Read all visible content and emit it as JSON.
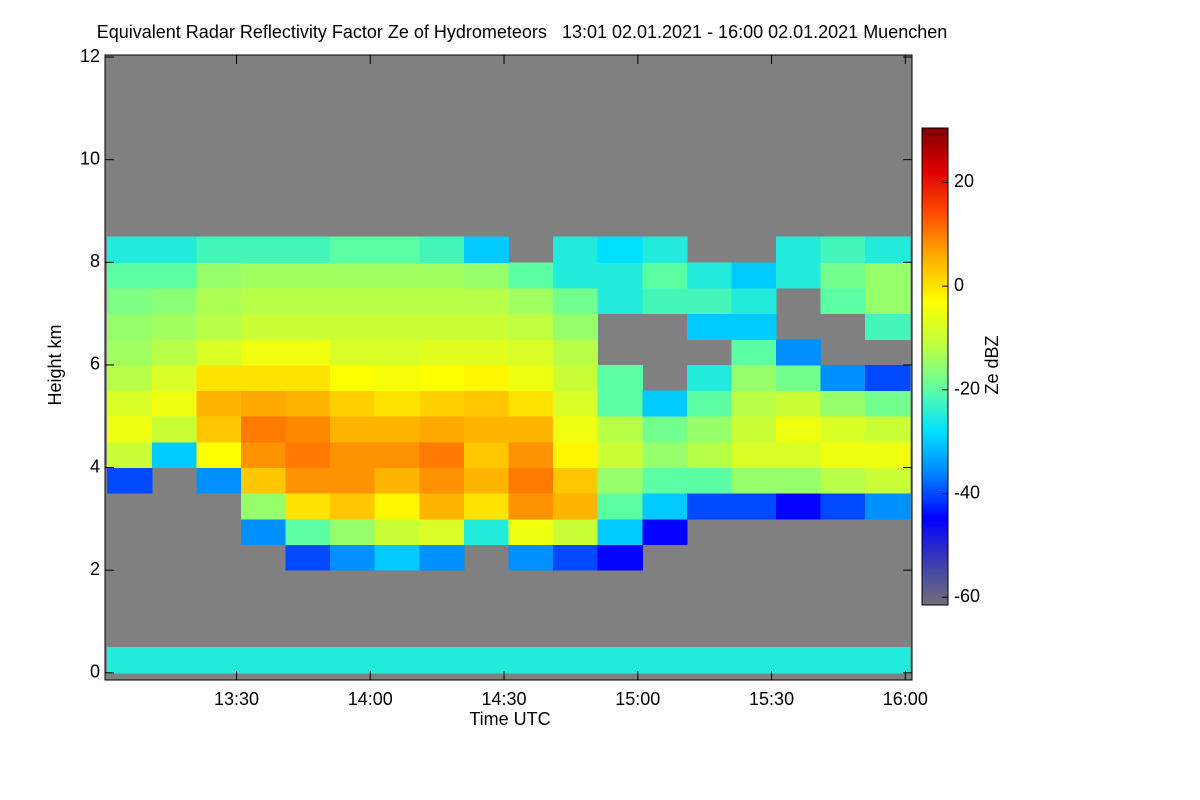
{
  "chart_data": {
    "type": "heatmap",
    "title": "Equivalent Radar Reflectivity Factor Ze of Hydrometeors   13:01 02.01.2021 - 16:00 02.01.2021 Muenchen",
    "x_label": "Time UTC",
    "y_label": "Height km",
    "colorbar_label": "Ze dBZ",
    "x_edges": [
      781,
      791,
      801,
      811,
      821,
      831,
      841,
      851,
      861,
      871,
      881,
      891,
      901,
      911,
      921,
      931,
      941,
      951,
      961
    ],
    "y_edges": [
      0,
      0.5,
      1,
      1.5,
      2,
      2.5,
      3,
      3.5,
      4,
      4.5,
      5,
      5.5,
      6,
      6.5,
      7,
      7.5,
      8,
      8.5,
      9
    ],
    "z": [
      [
        -25,
        null,
        null,
        null,
        null,
        null,
        null,
        -40,
        -10,
        -5,
        -8,
        -12,
        -14,
        -15,
        -17,
        -20,
        -25,
        null
      ],
      [
        -25,
        null,
        null,
        null,
        null,
        null,
        null,
        null,
        -30,
        -10,
        -5,
        -8,
        -12,
        -14,
        -16,
        -20,
        -25,
        null
      ],
      [
        -25,
        null,
        null,
        null,
        null,
        null,
        null,
        -35,
        -3,
        3,
        5,
        0,
        -8,
        -12,
        -13,
        -15,
        -22,
        null
      ],
      [
        -25,
        null,
        null,
        null,
        null,
        -35,
        -15,
        3,
        8,
        10,
        6,
        0,
        -5,
        -10,
        -12,
        -14,
        -22,
        null
      ],
      [
        -25,
        null,
        null,
        null,
        -40,
        -20,
        0,
        8,
        10,
        9,
        5,
        0,
        -5,
        -10,
        -12,
        -14,
        -22,
        null
      ],
      [
        -25,
        null,
        null,
        null,
        -35,
        -15,
        3,
        8,
        8,
        5,
        2,
        -3,
        -8,
        -10,
        -12,
        -14,
        -20,
        null
      ],
      [
        -25,
        null,
        null,
        null,
        -30,
        -10,
        -2,
        5,
        8,
        5,
        0,
        -4,
        -8,
        -10,
        -12,
        -14,
        -20,
        null
      ],
      [
        -25,
        null,
        null,
        null,
        -35,
        -8,
        5,
        8,
        10,
        6,
        2,
        -3,
        -7,
        -10,
        -12,
        -14,
        -22,
        null
      ],
      [
        -25,
        null,
        null,
        null,
        null,
        -25,
        0,
        5,
        3,
        5,
        3,
        -2,
        -7,
        -10,
        -12,
        -15,
        -30,
        null
      ],
      [
        -25,
        null,
        null,
        null,
        -35,
        -5,
        8,
        10,
        8,
        5,
        0,
        -5,
        -8,
        -11,
        -14,
        -20,
        null,
        null
      ],
      [
        -25,
        null,
        null,
        null,
        -40,
        -10,
        5,
        3,
        -2,
        -5,
        -8,
        -10,
        -12,
        -15,
        -18,
        -25,
        -25,
        null
      ],
      [
        -25,
        null,
        null,
        null,
        -45,
        -30,
        -20,
        -15,
        -10,
        -12,
        -20,
        -20,
        null,
        null,
        -25,
        -25,
        -28,
        null
      ],
      [
        -25,
        null,
        null,
        null,
        null,
        -45,
        -30,
        -20,
        -15,
        -18,
        -30,
        null,
        null,
        null,
        -22,
        -20,
        -25,
        null
      ],
      [
        -25,
        null,
        null,
        null,
        null,
        null,
        -40,
        -20,
        -12,
        -15,
        -20,
        -25,
        null,
        -30,
        -22,
        -25,
        null,
        null
      ],
      [
        -25,
        null,
        null,
        null,
        null,
        null,
        -40,
        -15,
        -8,
        -10,
        -12,
        -15,
        -20,
        -30,
        -25,
        -30,
        null,
        null
      ],
      [
        -25,
        null,
        null,
        null,
        null,
        null,
        -45,
        -15,
        -8,
        -5,
        -10,
        -18,
        -35,
        null,
        null,
        -25,
        -25,
        null
      ],
      [
        -25,
        null,
        null,
        null,
        null,
        null,
        -40,
        -12,
        -5,
        -8,
        -15,
        -35,
        null,
        null,
        -20,
        -18,
        -22,
        null
      ],
      [
        -25,
        null,
        null,
        null,
        null,
        null,
        -35,
        -10,
        -5,
        -10,
        -18,
        -40,
        null,
        -22,
        -15,
        -15,
        -25,
        null
      ]
    ],
    "xlim": [
      780.5,
      961.5
    ],
    "xticks": [
      {
        "value": 810,
        "label": "13:30"
      },
      {
        "value": 840,
        "label": "14:00"
      },
      {
        "value": 870,
        "label": "14:30"
      },
      {
        "value": 900,
        "label": "15:00"
      },
      {
        "value": 930,
        "label": "15:30"
      },
      {
        "value": 960,
        "label": "16:00"
      }
    ],
    "ylim": [
      -0.14,
      12.04
    ],
    "yticks": [
      0,
      2,
      4,
      6,
      8,
      10,
      12
    ],
    "clim": [
      -61.5,
      30.5
    ],
    "cticks": [
      -60,
      -40,
      -20,
      0,
      20
    ],
    "background": "#808080",
    "colormap": [
      "#707078",
      "#3c3cb4",
      "#0000ff",
      "#0080ff",
      "#00e0ff",
      "#60ffa0",
      "#c0ff40",
      "#ffff00",
      "#ffb000",
      "#ff5000",
      "#e00000",
      "#800000"
    ]
  }
}
